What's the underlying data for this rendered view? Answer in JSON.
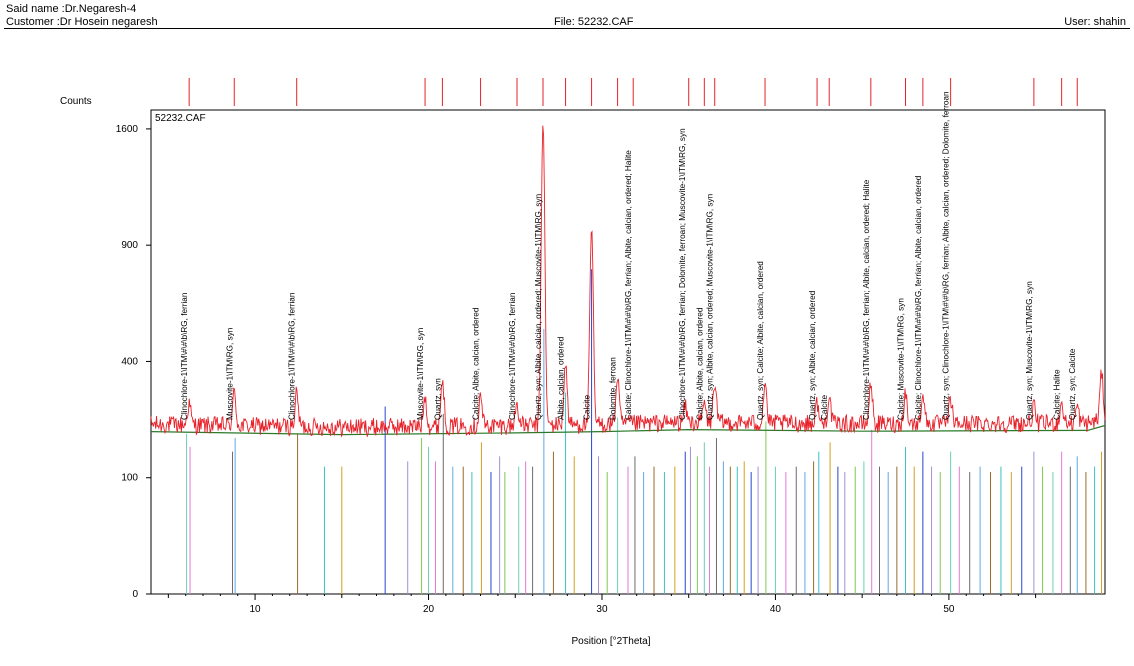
{
  "header": {
    "said_name": "Said name :Dr.Negaresh-4",
    "customer": "Customer :Dr Hosein negaresh",
    "file": "File: 52232.CAF",
    "user": "User: shahin"
  },
  "colors": {
    "pattern": "#e8222a",
    "background_line": "#2a7a2a",
    "stick_palette": [
      "#6ad1b0",
      "#e07ad8",
      "#6b6b6b",
      "#5fa8e6",
      "#9a6b2a",
      "#3ac0c8",
      "#d6a020",
      "#2a44d0",
      "#a38fd8",
      "#7ec850"
    ]
  },
  "chart_data": {
    "type": "line",
    "title": "52232.CAF",
    "xlabel": "Position [°2Theta]",
    "ylabel": "Counts",
    "xlim": [
      4.0,
      59.0
    ],
    "ylim": [
      0,
      1690
    ],
    "y_scale": "sqrt",
    "xticks": [
      10,
      20,
      30,
      40,
      50
    ],
    "yticks": [
      0,
      100,
      400,
      900,
      1600
    ],
    "grid": false,
    "legend": "none",
    "series": [
      {
        "name": "52232.CAF",
        "baseline": 200,
        "peaks": [
          {
            "x": 6.2,
            "y": 270
          },
          {
            "x": 8.8,
            "y": 300
          },
          {
            "x": 12.4,
            "y": 300
          },
          {
            "x": 19.8,
            "y": 290
          },
          {
            "x": 20.8,
            "y": 340
          },
          {
            "x": 23.0,
            "y": 290
          },
          {
            "x": 25.1,
            "y": 270
          },
          {
            "x": 26.6,
            "y": 1650
          },
          {
            "x": 27.9,
            "y": 390
          },
          {
            "x": 29.4,
            "y": 980
          },
          {
            "x": 30.9,
            "y": 350
          },
          {
            "x": 34.8,
            "y": 260
          },
          {
            "x": 35.9,
            "y": 270
          },
          {
            "x": 36.5,
            "y": 330
          },
          {
            "x": 39.4,
            "y": 330
          },
          {
            "x": 42.4,
            "y": 270
          },
          {
            "x": 43.1,
            "y": 290
          },
          {
            "x": 45.5,
            "y": 330
          },
          {
            "x": 47.5,
            "y": 300
          },
          {
            "x": 48.5,
            "y": 300
          },
          {
            "x": 50.1,
            "y": 280
          },
          {
            "x": 54.9,
            "y": 260
          },
          {
            "x": 56.5,
            "y": 270
          },
          {
            "x": 57.4,
            "y": 260
          },
          {
            "x": 58.8,
            "y": 360
          }
        ]
      },
      {
        "name": "background",
        "points": [
          [
            4,
            195
          ],
          [
            15,
            188
          ],
          [
            25,
            192
          ],
          [
            30,
            195
          ],
          [
            35,
            200
          ],
          [
            45,
            196
          ],
          [
            58,
            198
          ],
          [
            59,
            210
          ]
        ]
      }
    ],
    "reference_markers": [
      6.2,
      8.8,
      12.4,
      19.8,
      20.8,
      23.0,
      25.1,
      26.6,
      27.9,
      29.4,
      30.9,
      31.8,
      35.0,
      35.9,
      36.5,
      39.4,
      42.4,
      43.1,
      45.5,
      47.5,
      48.5,
      50.1,
      54.9,
      56.5,
      57.4
    ],
    "reference_sticks": [
      {
        "x": 6.05,
        "y": 190
      },
      {
        "x": 6.25,
        "y": 160
      },
      {
        "x": 8.7,
        "y": 150
      },
      {
        "x": 8.85,
        "y": 180
      },
      {
        "x": 12.45,
        "y": 190
      },
      {
        "x": 14.0,
        "y": 120
      },
      {
        "x": 15.0,
        "y": 120
      },
      {
        "x": 17.5,
        "y": 260
      },
      {
        "x": 18.8,
        "y": 130
      },
      {
        "x": 19.6,
        "y": 180
      },
      {
        "x": 20.0,
        "y": 160
      },
      {
        "x": 20.4,
        "y": 130
      },
      {
        "x": 20.85,
        "y": 240
      },
      {
        "x": 21.4,
        "y": 120
      },
      {
        "x": 22.0,
        "y": 120
      },
      {
        "x": 22.5,
        "y": 110
      },
      {
        "x": 23.05,
        "y": 170
      },
      {
        "x": 23.6,
        "y": 110
      },
      {
        "x": 24.1,
        "y": 140
      },
      {
        "x": 24.4,
        "y": 110
      },
      {
        "x": 25.2,
        "y": 120
      },
      {
        "x": 25.6,
        "y": 130
      },
      {
        "x": 26.0,
        "y": 120
      },
      {
        "x": 26.65,
        "y": 520
      },
      {
        "x": 27.2,
        "y": 150
      },
      {
        "x": 27.9,
        "y": 300
      },
      {
        "x": 28.4,
        "y": 140
      },
      {
        "x": 29.4,
        "y": 780
      },
      {
        "x": 29.8,
        "y": 140
      },
      {
        "x": 30.3,
        "y": 110
      },
      {
        "x": 30.9,
        "y": 230
      },
      {
        "x": 31.5,
        "y": 120
      },
      {
        "x": 31.9,
        "y": 140
      },
      {
        "x": 32.4,
        "y": 110
      },
      {
        "x": 33.0,
        "y": 120
      },
      {
        "x": 33.6,
        "y": 110
      },
      {
        "x": 34.2,
        "y": 120
      },
      {
        "x": 34.8,
        "y": 150
      },
      {
        "x": 35.1,
        "y": 160
      },
      {
        "x": 35.5,
        "y": 140
      },
      {
        "x": 35.9,
        "y": 170
      },
      {
        "x": 36.2,
        "y": 120
      },
      {
        "x": 36.6,
        "y": 180
      },
      {
        "x": 37.0,
        "y": 130
      },
      {
        "x": 37.4,
        "y": 120
      },
      {
        "x": 37.8,
        "y": 120
      },
      {
        "x": 38.2,
        "y": 130
      },
      {
        "x": 38.6,
        "y": 110
      },
      {
        "x": 39.0,
        "y": 120
      },
      {
        "x": 39.45,
        "y": 220
      },
      {
        "x": 40.0,
        "y": 120
      },
      {
        "x": 40.6,
        "y": 110
      },
      {
        "x": 41.2,
        "y": 120
      },
      {
        "x": 41.7,
        "y": 110
      },
      {
        "x": 42.2,
        "y": 130
      },
      {
        "x": 42.5,
        "y": 150
      },
      {
        "x": 43.15,
        "y": 170
      },
      {
        "x": 43.6,
        "y": 120
      },
      {
        "x": 44.0,
        "y": 110
      },
      {
        "x": 44.6,
        "y": 120
      },
      {
        "x": 45.1,
        "y": 130
      },
      {
        "x": 45.55,
        "y": 200
      },
      {
        "x": 46.0,
        "y": 120
      },
      {
        "x": 46.5,
        "y": 110
      },
      {
        "x": 47.0,
        "y": 120
      },
      {
        "x": 47.5,
        "y": 160
      },
      {
        "x": 48.0,
        "y": 120
      },
      {
        "x": 48.5,
        "y": 150
      },
      {
        "x": 49.0,
        "y": 120
      },
      {
        "x": 49.5,
        "y": 110
      },
      {
        "x": 50.1,
        "y": 150
      },
      {
        "x": 50.6,
        "y": 120
      },
      {
        "x": 51.2,
        "y": 110
      },
      {
        "x": 51.8,
        "y": 120
      },
      {
        "x": 52.4,
        "y": 110
      },
      {
        "x": 53.0,
        "y": 120
      },
      {
        "x": 53.6,
        "y": 110
      },
      {
        "x": 54.2,
        "y": 120
      },
      {
        "x": 54.9,
        "y": 150
      },
      {
        "x": 55.4,
        "y": 120
      },
      {
        "x": 56.0,
        "y": 110
      },
      {
        "x": 56.5,
        "y": 150
      },
      {
        "x": 57.0,
        "y": 120
      },
      {
        "x": 57.4,
        "y": 140
      },
      {
        "x": 57.9,
        "y": 110
      },
      {
        "x": 58.4,
        "y": 120
      },
      {
        "x": 58.8,
        "y": 150
      }
    ],
    "annotations": [
      {
        "x": 6.2,
        "text": "Clinochlore-1\\ITM\\#\\#\\b\\RG, ferrian"
      },
      {
        "x": 8.8,
        "text": "Muscovite-1\\ITM\\RG, syn"
      },
      {
        "x": 12.4,
        "text": "Clinochlore-1\\ITM\\#\\#\\b\\RG, ferrian"
      },
      {
        "x": 19.8,
        "text": "Muscovite-1\\ITM\\RG, syn"
      },
      {
        "x": 20.8,
        "text": "Quartz, syn"
      },
      {
        "x": 23.0,
        "text": "Calcite; Albite, calcian, ordered"
      },
      {
        "x": 25.1,
        "text": "Clinochlore-1\\ITM\\#\\#\\b\\RG, ferrian"
      },
      {
        "x": 26.6,
        "text": "Quartz, syn; Albite, calcian, ordered; Muscovite-1\\ITM\\RG, syn"
      },
      {
        "x": 27.9,
        "text": "Albite, calcian, ordered"
      },
      {
        "x": 29.4,
        "text": "Calcite"
      },
      {
        "x": 30.9,
        "text": "Dolomite, ferroan"
      },
      {
        "x": 31.8,
        "text": "Calcite; Clinochlore-1\\ITM\\#\\#\\b\\RG, ferrian; Albite, calcian, ordered; Halite"
      },
      {
        "x": 34.9,
        "text": "Clinochlore-1\\ITM\\#\\#\\b\\RG, ferrian; Dolomite, ferroan; Muscovite-1\\ITM\\RG, syn"
      },
      {
        "x": 35.9,
        "text": "Calcite; Albite, calcian, ordered"
      },
      {
        "x": 36.5,
        "text": "Quartz, syn; Albite, calcian, ordered; Muscovite-1\\ITM\\RG, syn"
      },
      {
        "x": 39.4,
        "text": "Quartz, syn; Calcite; Albite, calcian, ordered"
      },
      {
        "x": 42.4,
        "text": "Quartz, syn; Albite, calcian, ordered"
      },
      {
        "x": 43.1,
        "text": "Calcite"
      },
      {
        "x": 45.5,
        "text": "Clinochlore-1\\ITM\\#\\#\\b\\RG, ferrian; Albite, calcian, ordered; Halite"
      },
      {
        "x": 47.5,
        "text": "Calcite; Muscovite-1\\ITM\\RG, syn"
      },
      {
        "x": 48.5,
        "text": "Calcite; Clinochlore-1\\ITM\\#\\#\\b\\RG, ferrian; Albite, calcian, ordered"
      },
      {
        "x": 50.1,
        "text": "Quartz, syn; Clinochlore-1\\ITM\\#\\#\\b\\RG, ferrian; Albite, calcian, ordered; Dolomite, ferroan"
      },
      {
        "x": 54.9,
        "text": "Quartz, syn; Muscovite-1\\ITM\\RG, syn"
      },
      {
        "x": 56.5,
        "text": "Calcite; Halite"
      },
      {
        "x": 57.4,
        "text": "Quartz, syn; Calcite"
      }
    ]
  }
}
